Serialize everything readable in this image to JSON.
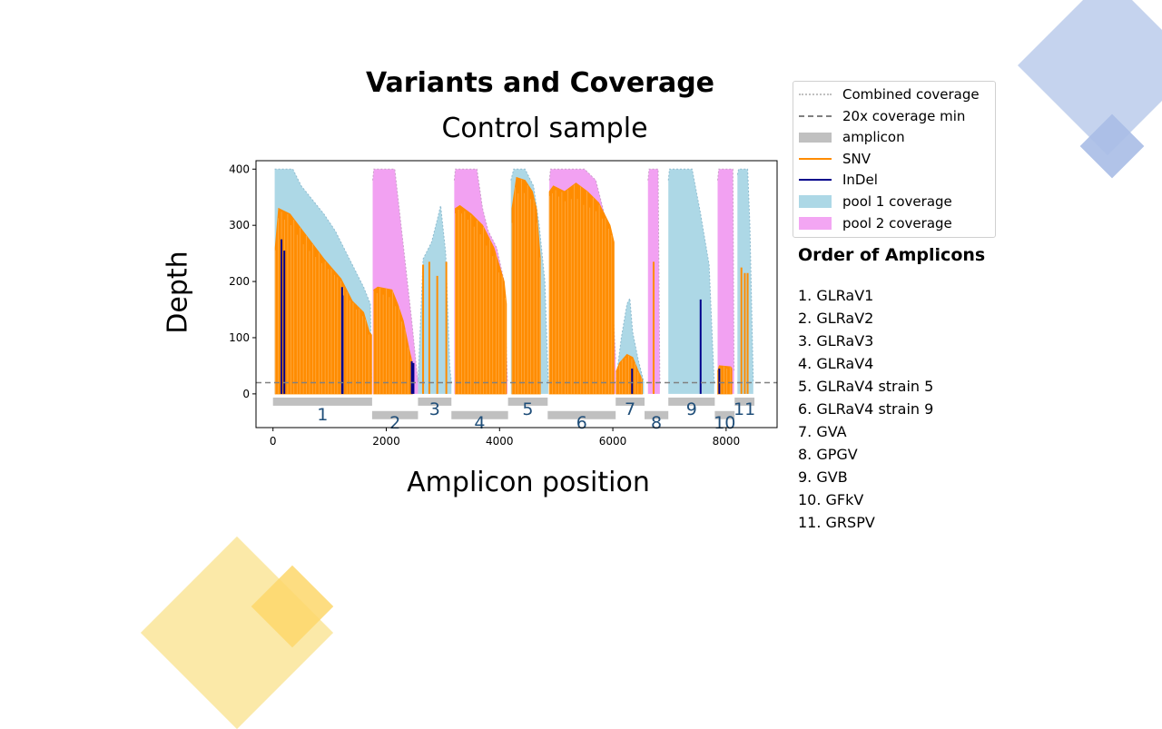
{
  "chart_data": {
    "type": "area",
    "title": "Variants and Coverage",
    "subtitle": "Control sample",
    "xlabel": "Amplicon position",
    "ylabel": "Depth",
    "xlim": [
      -300,
      8900
    ],
    "ylim": [
      -60,
      415
    ],
    "xticks": [
      0,
      2000,
      4000,
      6000,
      8000
    ],
    "yticks": [
      0,
      100,
      200,
      300,
      400
    ],
    "threshold": 20,
    "legend_position": "outside-right",
    "legend": [
      "Combined coverage",
      "20x coverage min",
      "amplicon",
      "SNV",
      "InDel",
      "pool 1 coverage",
      "pool 2 coverage"
    ],
    "colors": {
      "pool1": "#add8e6",
      "pool2": "#ee82ee",
      "snv": "#ff8c00",
      "indel": "#00008b",
      "amplicon": "#c0c0c0",
      "threshold": "#808080",
      "combined": "#c0c0c0"
    },
    "amplicons": [
      {
        "label": "1",
        "start": 0,
        "end": 1750,
        "row": 0
      },
      {
        "label": "2",
        "start": 1750,
        "end": 2560,
        "row": 1
      },
      {
        "label": "3",
        "start": 2560,
        "end": 3150,
        "row": 0
      },
      {
        "label": "4",
        "start": 3150,
        "end": 4150,
        "row": 1
      },
      {
        "label": "5",
        "start": 4150,
        "end": 4850,
        "row": 0
      },
      {
        "label": "6",
        "start": 4850,
        "end": 6050,
        "row": 1
      },
      {
        "label": "7",
        "start": 6050,
        "end": 6560,
        "row": 0
      },
      {
        "label": "8",
        "start": 6560,
        "end": 6980,
        "row": 1
      },
      {
        "label": "9",
        "start": 6980,
        "end": 7800,
        "row": 0
      },
      {
        "label": "10",
        "start": 7800,
        "end": 8150,
        "row": 1
      },
      {
        "label": "11",
        "start": 8150,
        "end": 8500,
        "row": 0
      }
    ],
    "pool1_coverage": [
      {
        "x": [
          30,
          350,
          500,
          700,
          900,
          1100,
          1300,
          1500,
          1600,
          1680,
          1720,
          1740
        ],
        "y": [
          400,
          400,
          370,
          345,
          320,
          290,
          250,
          210,
          190,
          170,
          160,
          20
        ]
      },
      {
        "x": [
          2560,
          2650,
          2800,
          2900,
          2960,
          3050,
          3120,
          3150
        ],
        "y": [
          20,
          240,
          270,
          310,
          335,
          250,
          50,
          20
        ]
      },
      {
        "x": [
          4200,
          4250,
          4450,
          4600,
          4700,
          4800,
          4860
        ],
        "y": [
          380,
          400,
          400,
          370,
          300,
          200,
          20
        ]
      },
      {
        "x": [
          6050,
          6150,
          6250,
          6300,
          6350,
          6450,
          6550
        ],
        "y": [
          20,
          100,
          160,
          170,
          110,
          60,
          20
        ]
      },
      {
        "x": [
          6980,
          7000,
          7400,
          7550,
          7700,
          7790
        ],
        "y": [
          380,
          400,
          400,
          320,
          230,
          20
        ]
      },
      {
        "x": [
          8200,
          8220,
          8380,
          8420,
          8480
        ],
        "y": [
          390,
          400,
          400,
          300,
          20
        ]
      }
    ],
    "pool2_coverage": [
      {
        "x": [
          1760,
          1780,
          2150,
          2250,
          2350,
          2450,
          2520,
          2560
        ],
        "y": [
          380,
          400,
          400,
          310,
          220,
          130,
          60,
          20
        ]
      },
      {
        "x": [
          3200,
          3220,
          3600,
          3700,
          3800,
          3950,
          4080,
          4140
        ],
        "y": [
          380,
          400,
          400,
          330,
          290,
          260,
          200,
          20
        ]
      },
      {
        "x": [
          4880,
          4900,
          5500,
          5700,
          5850,
          5950,
          6050
        ],
        "y": [
          380,
          400,
          400,
          380,
          320,
          260,
          60
        ]
      },
      {
        "x": [
          6620,
          6640,
          6800,
          6830
        ],
        "y": [
          380,
          400,
          400,
          20
        ]
      },
      {
        "x": [
          7850,
          7870,
          8120,
          8140
        ],
        "y": [
          380,
          400,
          400,
          40
        ]
      }
    ],
    "snv_fill": [
      {
        "x": [
          40,
          100,
          300,
          600,
          900,
          1200,
          1400,
          1600,
          1700,
          1740
        ],
        "y": [
          260,
          330,
          320,
          280,
          240,
          205,
          165,
          145,
          110,
          105
        ]
      },
      {
        "x": [
          1780,
          1850,
          2100,
          2200,
          2300,
          2400,
          2460
        ],
        "y": [
          185,
          190,
          185,
          160,
          130,
          80,
          55
        ]
      },
      {
        "x": [
          3220,
          3300,
          3500,
          3700,
          3900,
          4080,
          4120
        ],
        "y": [
          330,
          335,
          320,
          300,
          260,
          200,
          160
        ]
      },
      {
        "x": [
          4220,
          4300,
          4450,
          4580,
          4650,
          4720
        ],
        "y": [
          330,
          385,
          380,
          360,
          330,
          240
        ]
      },
      {
        "x": [
          4880,
          4950,
          5150,
          5350,
          5550,
          5750,
          5950,
          6020
        ],
        "y": [
          360,
          370,
          360,
          375,
          360,
          340,
          300,
          270
        ]
      },
      {
        "x": [
          6060,
          6120,
          6250,
          6350,
          6450,
          6520
        ],
        "y": [
          40,
          55,
          70,
          65,
          40,
          25
        ]
      },
      {
        "x": [
          7850,
          7880,
          8080,
          8100
        ],
        "y": [
          40,
          50,
          48,
          45
        ]
      }
    ],
    "snv_spikes": [
      {
        "x": 2650,
        "y": 230
      },
      {
        "x": 2760,
        "y": 235
      },
      {
        "x": 2900,
        "y": 210
      },
      {
        "x": 3060,
        "y": 235
      },
      {
        "x": 6720,
        "y": 235
      },
      {
        "x": 8270,
        "y": 225
      },
      {
        "x": 8330,
        "y": 215
      },
      {
        "x": 8380,
        "y": 215
      }
    ],
    "indels": [
      {
        "x": 150,
        "y": 275
      },
      {
        "x": 200,
        "y": 255
      },
      {
        "x": 1220,
        "y": 190
      },
      {
        "x": 1230,
        "y": 175
      },
      {
        "x": 2450,
        "y": 58
      },
      {
        "x": 2480,
        "y": 55
      },
      {
        "x": 6340,
        "y": 45
      },
      {
        "x": 7550,
        "y": 168
      },
      {
        "x": 7880,
        "y": 45
      }
    ]
  },
  "legend_items": [
    {
      "label": "Combined coverage",
      "style": "dotted"
    },
    {
      "label": "20x coverage min",
      "style": "dashed"
    },
    {
      "label": "amplicon",
      "style": "bar-gray"
    },
    {
      "label": "SNV",
      "style": "line-orange"
    },
    {
      "label": "InDel",
      "style": "line-navy"
    },
    {
      "label": "pool 1 coverage",
      "style": "fill-blue"
    },
    {
      "label": "pool 2 coverage",
      "style": "fill-pink"
    }
  ],
  "order": {
    "title": "Order of Amplicons",
    "items": [
      "1. GLRaV1",
      "2. GLRaV2",
      "3. GLRaV3",
      "4. GLRaV4",
      "5. GLRaV4 strain 5",
      "6. GLRaV4 strain 9",
      "7. GVA",
      "8. GPGV",
      "9. GVB",
      "10. GFkV",
      "11. GRSPV"
    ]
  }
}
